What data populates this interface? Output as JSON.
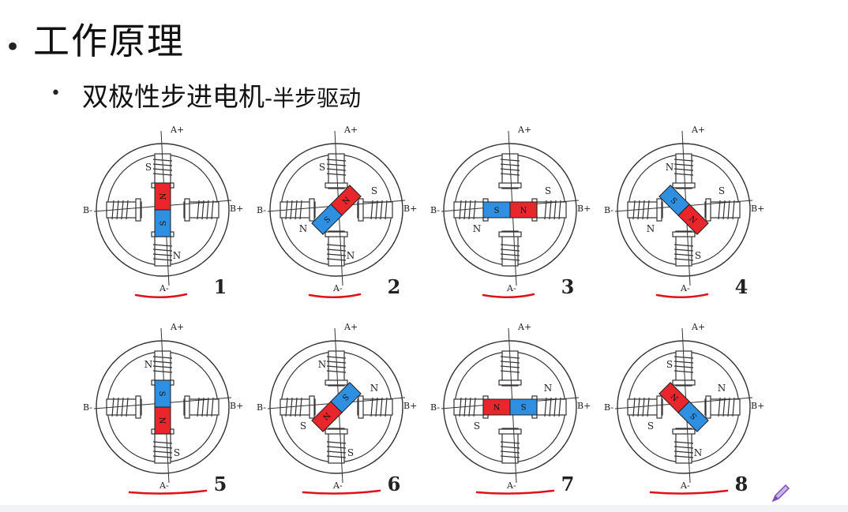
{
  "title": "工作原理",
  "subtitle_main": "双极性步进电机",
  "subtitle_suffix": "-半步驱动",
  "terminal_labels": {
    "a_plus": "A+",
    "a_minus": "A-",
    "b_plus": "B+",
    "b_minus": "B-"
  },
  "colors": {
    "north": "#e8262b",
    "south": "#2f8fe0",
    "annotation": "#e0101a"
  },
  "steps": [
    {
      "number": "1",
      "rotor_angle": 90,
      "rotor_north_label": "N",
      "rotor_south_label": "S",
      "stator_poles": {
        "top": "S",
        "right": "",
        "bottom": "N",
        "left": ""
      },
      "underlined": true
    },
    {
      "number": "2",
      "rotor_angle": 45,
      "rotor_north_label": "N",
      "rotor_south_label": "S",
      "stator_poles": {
        "top": "S",
        "right": "S",
        "bottom": "N",
        "left": "N"
      },
      "underlined": true
    },
    {
      "number": "3",
      "rotor_angle": 0,
      "rotor_north_label": "N",
      "rotor_south_label": "S",
      "stator_poles": {
        "top": "",
        "right": "S",
        "bottom": "",
        "left": "N"
      },
      "underlined": true
    },
    {
      "number": "4",
      "rotor_angle": -45,
      "rotor_north_label": "N",
      "rotor_south_label": "S",
      "stator_poles": {
        "top": "N",
        "right": "S",
        "bottom": "S",
        "left": "N"
      },
      "underlined": true
    },
    {
      "number": "5",
      "rotor_angle": -90,
      "rotor_north_label": "N",
      "rotor_south_label": "S",
      "stator_poles": {
        "top": "N",
        "right": "",
        "bottom": "S",
        "left": ""
      },
      "underlined": true
    },
    {
      "number": "6",
      "rotor_angle": 225,
      "rotor_north_label": "N",
      "rotor_south_label": "S",
      "stator_poles": {
        "top": "N",
        "right": "N",
        "bottom": "S",
        "left": "S"
      },
      "underlined": true
    },
    {
      "number": "7",
      "rotor_angle": 180,
      "rotor_north_label": "N",
      "rotor_south_label": "S",
      "stator_poles": {
        "top": "",
        "right": "N",
        "bottom": "",
        "left": "S"
      },
      "underlined": true
    },
    {
      "number": "8",
      "rotor_angle": 135,
      "rotor_north_label": "N",
      "rotor_south_label": "S",
      "stator_poles": {
        "top": "S",
        "right": "N",
        "bottom": "N",
        "left": "S"
      },
      "underlined": true
    }
  ]
}
